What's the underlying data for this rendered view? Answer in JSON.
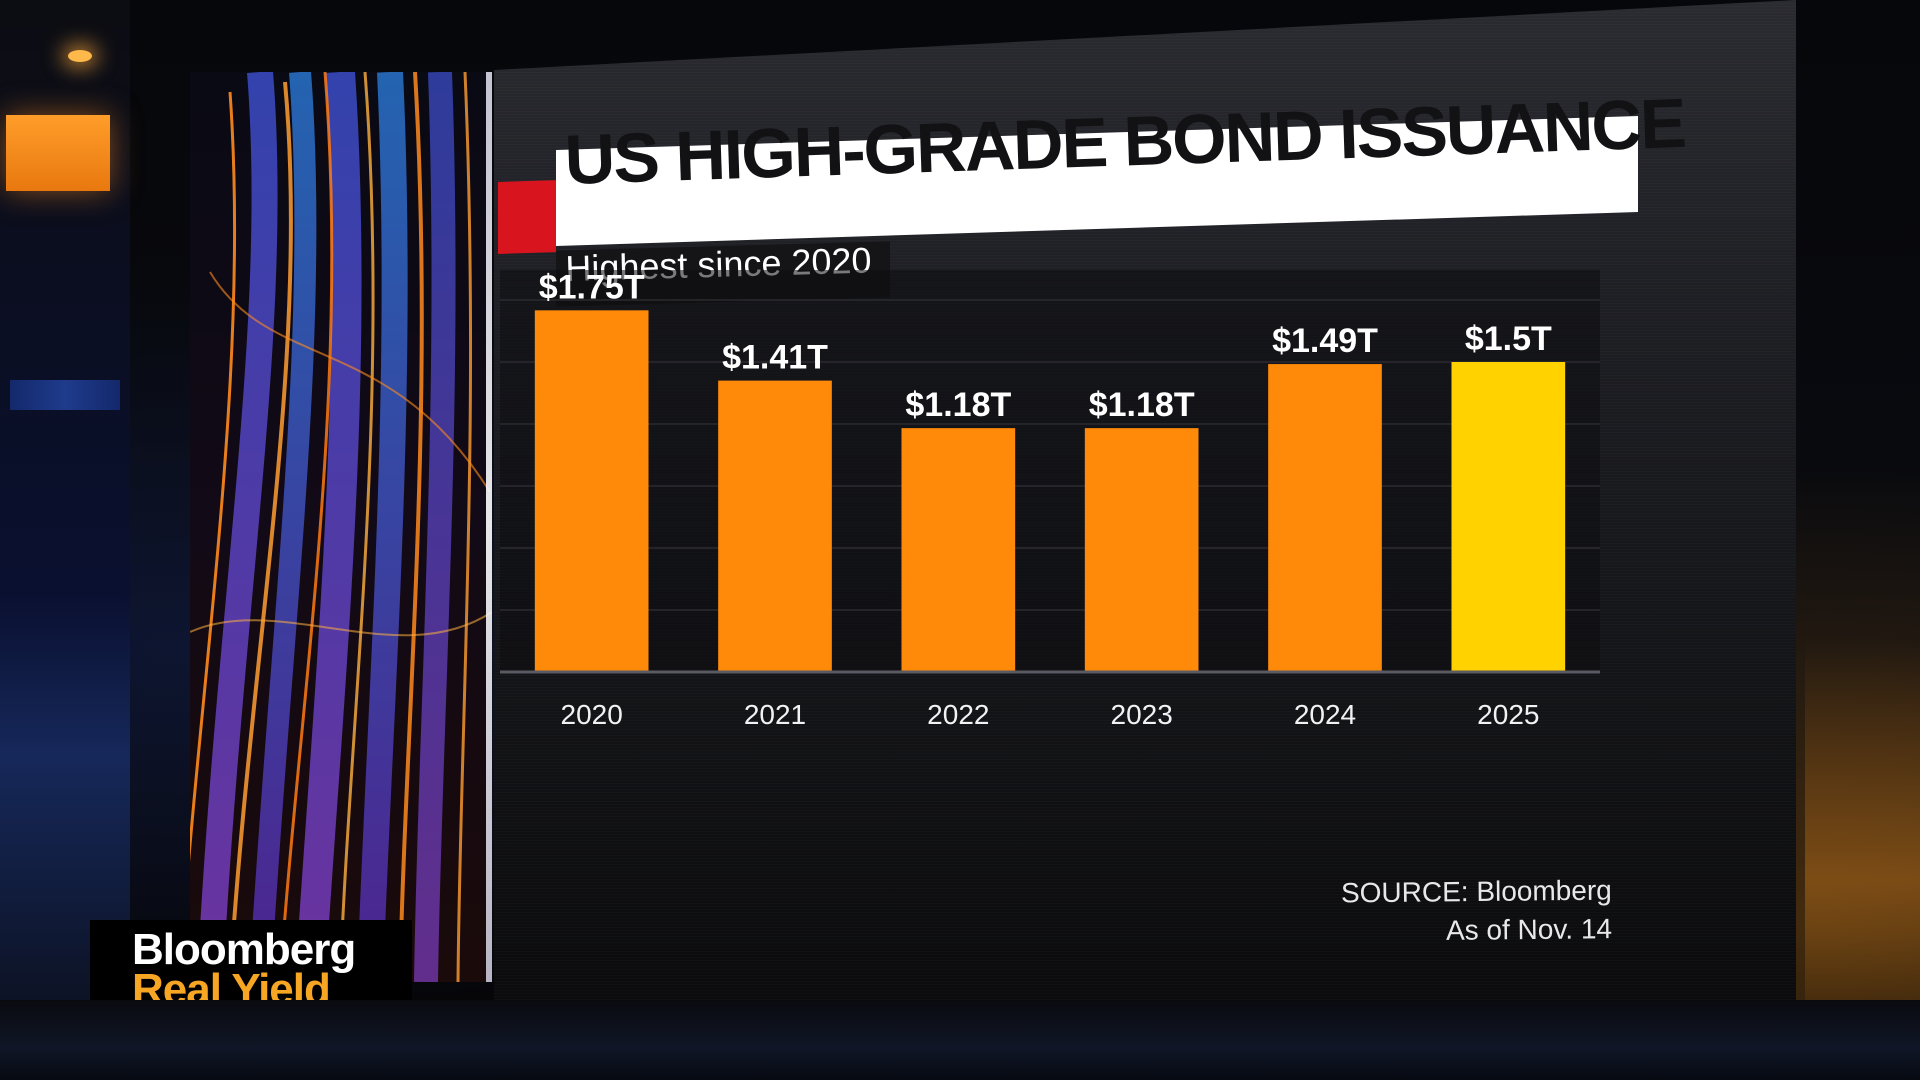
{
  "colors": {
    "bar_orange": "#ff8a0a",
    "bar_highlight": "#ffd200",
    "title_bg": "#ffffff",
    "title_accent": "#d8141e",
    "brand_orange": "#f6a623"
  },
  "chart_data": {
    "type": "bar",
    "title": "US HIGH-GRADE BOND ISSUANCE",
    "subtitle": "Highest since 2020",
    "xlabel": "",
    "ylabel": "",
    "categories": [
      "2020",
      "2021",
      "2022",
      "2023",
      "2024",
      "2025"
    ],
    "values": [
      1.75,
      1.41,
      1.18,
      1.18,
      1.49,
      1.5
    ],
    "data_labels": [
      "$1.75T",
      "$1.41T",
      "$1.18T",
      "$1.18T",
      "$1.49T",
      "$1.5T"
    ],
    "unit": "$ trillions",
    "highlight_category": "2025",
    "ylim": [
      0,
      1.8
    ],
    "grid": true,
    "legend": "none"
  },
  "source": {
    "line1": "SOURCE: Bloomberg",
    "line2": "As of Nov. 14"
  },
  "brand": {
    "line1": "Bloomberg",
    "line2": "Real Yield"
  }
}
